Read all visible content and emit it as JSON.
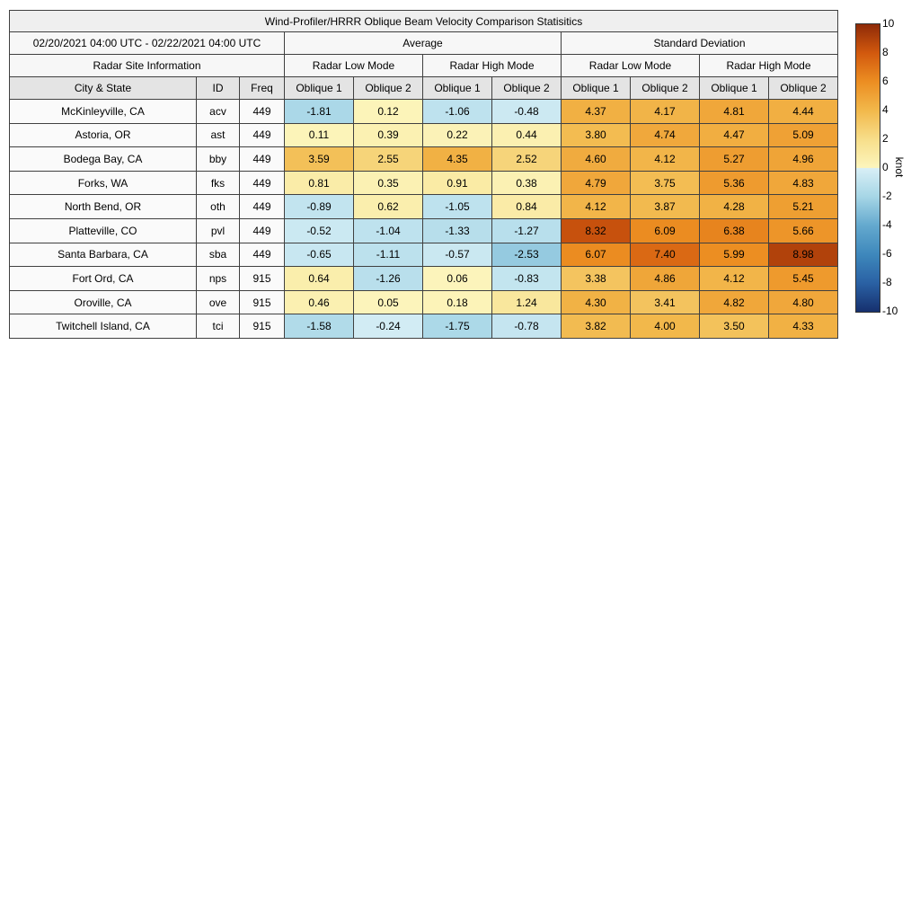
{
  "title": "Wind-Profiler/HRRR Oblique Beam Velocity Comparison Statisitics",
  "header": {
    "date_range": "02/20/2021 04:00 UTC - 02/22/2021 04:00 UTC",
    "avg_label": "Average",
    "std_label": "Standard Deviation",
    "site_info": "Radar Site Information",
    "mode_labels": [
      "Radar Low Mode",
      "Radar High Mode",
      "Radar Low Mode",
      "Radar High Mode"
    ],
    "col_labels": [
      "City & State",
      "ID",
      "Freq",
      "Oblique 1",
      "Oblique 2",
      "Oblique 1",
      "Oblique 2",
      "Oblique 1",
      "Oblique 2",
      "Oblique 1",
      "Oblique 2"
    ]
  },
  "chart_data": {
    "type": "heatmap",
    "title": "Wind-Profiler/HRRR Oblique Beam Velocity Comparison Statisitics",
    "time_range": "02/20/2021 04:00 UTC - 02/22/2021 04:00 UTC",
    "value_columns": [
      "Average Radar Low Mode Oblique 1",
      "Average Radar Low Mode Oblique 2",
      "Average Radar High Mode Oblique 1",
      "Average Radar High Mode Oblique 2",
      "Std Dev Radar Low Mode Oblique 1",
      "Std Dev Radar Low Mode Oblique 2",
      "Std Dev Radar High Mode Oblique 1",
      "Std Dev Radar High Mode Oblique 2"
    ],
    "unit": "knot",
    "color_range": [
      -10,
      10
    ],
    "rows": [
      {
        "city": "McKinleyville, CA",
        "id": "acv",
        "freq": "449",
        "values": [
          -1.81,
          0.12,
          -1.06,
          -0.48,
          4.37,
          4.17,
          4.81,
          4.44
        ]
      },
      {
        "city": "Astoria, OR",
        "id": "ast",
        "freq": "449",
        "values": [
          0.11,
          0.39,
          0.22,
          0.44,
          3.8,
          4.74,
          4.47,
          5.09
        ]
      },
      {
        "city": "Bodega Bay, CA",
        "id": "bby",
        "freq": "449",
        "values": [
          3.59,
          2.55,
          4.35,
          2.52,
          4.6,
          4.12,
          5.27,
          4.96
        ]
      },
      {
        "city": "Forks, WA",
        "id": "fks",
        "freq": "449",
        "values": [
          0.81,
          0.35,
          0.91,
          0.38,
          4.79,
          3.75,
          5.36,
          4.83
        ]
      },
      {
        "city": "North Bend, OR",
        "id": "oth",
        "freq": "449",
        "values": [
          -0.89,
          0.62,
          -1.05,
          0.84,
          4.12,
          3.87,
          4.28,
          5.21
        ]
      },
      {
        "city": "Platteville, CO",
        "id": "pvl",
        "freq": "449",
        "values": [
          -0.52,
          -1.04,
          -1.33,
          -1.27,
          8.32,
          6.09,
          6.38,
          5.66
        ]
      },
      {
        "city": "Santa Barbara, CA",
        "id": "sba",
        "freq": "449",
        "values": [
          -0.65,
          -1.11,
          -0.57,
          -2.53,
          6.07,
          7.4,
          5.99,
          8.98
        ]
      },
      {
        "city": "Fort Ord, CA",
        "id": "nps",
        "freq": "915",
        "values": [
          0.64,
          -1.26,
          0.06,
          -0.83,
          3.38,
          4.86,
          4.12,
          5.45
        ]
      },
      {
        "city": "Oroville, CA",
        "id": "ove",
        "freq": "915",
        "values": [
          0.46,
          0.05,
          0.18,
          1.24,
          4.3,
          3.41,
          4.82,
          4.8
        ]
      },
      {
        "city": "Twitchell Island, CA",
        "id": "tci",
        "freq": "915",
        "values": [
          -1.58,
          -0.24,
          -1.75,
          -0.78,
          3.82,
          4.0,
          3.5,
          4.33
        ]
      }
    ]
  },
  "colorbar": {
    "label": "knot",
    "min": -10,
    "max": 10,
    "ticks": [
      10,
      8,
      6,
      4,
      2,
      0,
      -2,
      -4,
      -6,
      -8,
      -10
    ],
    "stops": [
      [
        -10,
        "#16306E"
      ],
      [
        -8,
        "#2A61A4"
      ],
      [
        -6,
        "#3E88BC"
      ],
      [
        -4,
        "#64A9CE"
      ],
      [
        -2,
        "#A6D6E6"
      ],
      [
        -0.001,
        "#D8EFF6"
      ],
      [
        0,
        "#FCF5BC"
      ],
      [
        2,
        "#F7DE8A"
      ],
      [
        4,
        "#F2B84B"
      ],
      [
        6,
        "#EC8E22"
      ],
      [
        8,
        "#D2590E"
      ],
      [
        10,
        "#8E2A08"
      ]
    ]
  }
}
